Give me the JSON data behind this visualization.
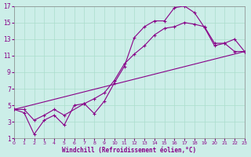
{
  "xlabel": "Windchill (Refroidissement éolien,°C)",
  "background_color": "#cceee8",
  "grid_color": "#aaddcc",
  "line_color": "#880088",
  "xlim": [
    0,
    23
  ],
  "ylim": [
    1,
    17
  ],
  "xticks": [
    0,
    1,
    2,
    3,
    4,
    5,
    6,
    7,
    8,
    9,
    10,
    11,
    12,
    13,
    14,
    15,
    16,
    17,
    18,
    19,
    20,
    21,
    22,
    23
  ],
  "yticks": [
    1,
    3,
    5,
    7,
    9,
    11,
    13,
    15,
    17
  ],
  "series1_x": [
    0,
    1,
    2,
    3,
    4,
    5,
    6,
    7,
    8,
    9,
    10,
    11,
    12,
    13,
    14,
    15,
    16,
    17,
    18,
    19,
    20,
    21,
    22,
    23
  ],
  "series1_y": [
    4.5,
    4.1,
    1.5,
    3.2,
    3.8,
    2.6,
    5.0,
    5.2,
    4.0,
    5.5,
    7.7,
    9.7,
    13.2,
    14.5,
    15.2,
    15.2,
    16.8,
    17.0,
    16.2,
    14.4,
    12.2,
    12.5,
    13.0,
    11.5
  ],
  "series2_x": [
    0,
    1,
    2,
    3,
    4,
    5,
    7,
    8,
    9,
    10,
    11,
    12,
    13,
    14,
    15,
    16,
    17,
    18,
    19,
    20,
    21,
    22,
    23
  ],
  "series2_y": [
    4.5,
    4.5,
    3.2,
    3.8,
    4.5,
    3.8,
    5.2,
    5.8,
    6.5,
    8.0,
    10.0,
    11.2,
    12.2,
    13.5,
    14.3,
    14.5,
    15.0,
    14.8,
    14.5,
    12.5,
    12.5,
    11.5,
    11.5
  ],
  "series3_x": [
    0,
    23
  ],
  "series3_y": [
    4.5,
    11.5
  ]
}
